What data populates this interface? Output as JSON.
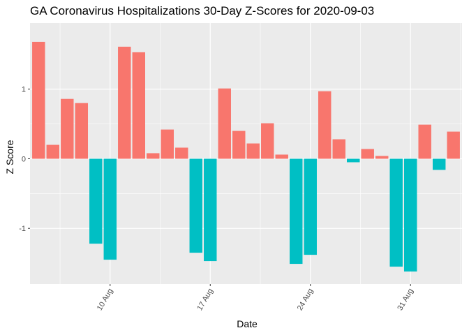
{
  "chart_data": {
    "type": "bar",
    "title": "GA Coronavirus Hospitalizations 30-Day Z-Scores for 2020-09-03",
    "xlabel": "Date",
    "ylabel": "Z Score",
    "ylim": [
      -1.8,
      1.95
    ],
    "yticks": [
      -1,
      0,
      1
    ],
    "ytick_labels": [
      "-1",
      "0",
      "1"
    ],
    "x_tick_dates": [
      "2020-08-10",
      "2020-08-17",
      "2020-08-24",
      "2020-08-31"
    ],
    "x_tick_labels": [
      "10 Aug",
      "17 Aug",
      "24 Aug",
      "31 Aug"
    ],
    "grid": true,
    "legend": "none",
    "colors": {
      "positive": "#F8766D",
      "negative": "#00BFC4",
      "panel": "#EBEBEB",
      "grid": "#FFFFFF"
    },
    "dates": [
      "2020-08-05",
      "2020-08-06",
      "2020-08-07",
      "2020-08-08",
      "2020-08-09",
      "2020-08-10",
      "2020-08-11",
      "2020-08-12",
      "2020-08-13",
      "2020-08-14",
      "2020-08-15",
      "2020-08-16",
      "2020-08-17",
      "2020-08-18",
      "2020-08-19",
      "2020-08-20",
      "2020-08-21",
      "2020-08-22",
      "2020-08-23",
      "2020-08-24",
      "2020-08-25",
      "2020-08-26",
      "2020-08-27",
      "2020-08-28",
      "2020-08-29",
      "2020-08-30",
      "2020-08-31",
      "2020-09-01",
      "2020-09-02",
      "2020-09-03"
    ],
    "values": [
      1.68,
      0.2,
      0.86,
      0.8,
      -1.22,
      -1.45,
      1.61,
      1.53,
      0.08,
      0.42,
      0.16,
      -1.35,
      -1.47,
      1.01,
      0.4,
      0.22,
      0.51,
      0.06,
      -1.51,
      -1.38,
      0.97,
      0.28,
      -0.05,
      0.14,
      0.04,
      -1.55,
      -1.62,
      0.49,
      -0.16,
      0.39
    ]
  }
}
